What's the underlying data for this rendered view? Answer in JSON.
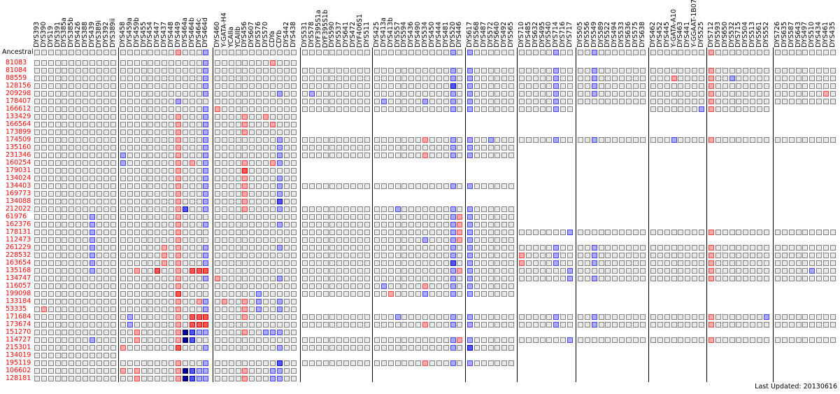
{
  "cell_codes": {
    ".": "same as modal",
    "r": "+1",
    "R": "+2 or more",
    "b": "-1",
    "B": "-2",
    "N": "-3 or more",
    "empty_string": "all same",
    "null": "not tested"
  },
  "colors": {
    "gray": "#e8e8e8",
    "r": "#ffaaaa",
    "R": "#ff5555",
    "b": "#aaaaff",
    "B": "#5555ff",
    "N": "#000099",
    "kit_label": "#ff0000"
  },
  "panels": [
    [
      "DYS393",
      "DYS390",
      "DYS19",
      "DYS391",
      "DYS385a",
      "DYS385b",
      "DYS426",
      "DYS388",
      "DYS439",
      "DYS389i",
      "DYS392",
      "DYS389ii"
    ],
    [
      "DYS458",
      "DYS459a",
      "DYS459b",
      "DYS455",
      "DYS454",
      "DYS447",
      "DYS437",
      "DYS448",
      "DYS449",
      "DYS464a",
      "DYS464b",
      "DYS464c",
      "DYS464d"
    ],
    [
      "DYS460",
      "Y-GATA-H4",
      "YCAIIa",
      "YCAIIb",
      "DYS456",
      "DYS607",
      "DYS576",
      "DYS570",
      "CDYa",
      "CDYb",
      "DYS442",
      "DYS438"
    ],
    [
      "DYS531",
      "DYS578",
      "DYF395S1a",
      "DYF395S1b",
      "DYS590",
      "DYS537",
      "DYS641",
      "DYS472",
      "DYF406S1",
      "DYS511"
    ],
    [
      "DYS425",
      "DYS413a",
      "DYS413b",
      "DYS557",
      "DYS594",
      "DYS436",
      "DYS490",
      "DYS534",
      "DYS450",
      "DYS444",
      "DYS481",
      "DYS520",
      "DYS446"
    ],
    [
      "DYS617",
      "DYS568",
      "DYS487",
      "DYS572",
      "DYS640",
      "DYS492",
      "DYS565"
    ],
    [
      "DYS710",
      "DYS485",
      "DYS632",
      "DYS495",
      "DYS540",
      "DYS714",
      "DYS716",
      "DYS717"
    ],
    [
      "DYS505",
      "DYS556",
      "DYS549",
      "DYS589",
      "DYS522",
      "DYS494",
      "DYS533",
      "DYS636",
      "DYS575",
      "DYS638"
    ],
    [
      "DYS462",
      "DYS452",
      "DYS445",
      "Y-GATA-A10",
      "DYS463",
      "DYS441",
      "Y-GGAAT-1B07",
      "DYS525"
    ],
    [
      "DYS712",
      "DYS593",
      "DYS650",
      "DYS532",
      "DYS715",
      "DYS504",
      "DYS513",
      "DYS561",
      "DYS552"
    ],
    [
      "DYS726",
      "DYS635",
      "DYS587",
      "DYS643",
      "DYS497",
      "DYS510",
      "DYS434",
      "DYS461",
      "DYS435"
    ]
  ],
  "ancestral": {
    "label": "Ancestral",
    "cells": [
      "",
      "........r...b",
      "",
      "",
      "...........b.",
      "b......",
      ".....b..",
      "..b.......",
      "",
      "r........",
      ""
    ]
  },
  "kits": [
    {
      "id": "81083",
      "cells": [
        "",
        "............b",
        "........r...",
        null,
        null,
        null,
        null,
        null,
        null,
        null,
        null
      ]
    },
    {
      "id": "81084",
      "cells": [
        "",
        "............b",
        "",
        "",
        "...........b.",
        "b......",
        ".....b..",
        "..b.......",
        "",
        "r........",
        ""
      ]
    },
    {
      "id": "88559",
      "cells": [
        "",
        "............b",
        "",
        "",
        "...........b.",
        "b......",
        ".....b..",
        "..b.......",
        "...r....",
        "r..b.....",
        ""
      ]
    },
    {
      "id": "128156",
      "cells": [
        "",
        "............b",
        "",
        "",
        "...........B.",
        "b......",
        ".....b..",
        "..b.......",
        "",
        "r........",
        ""
      ]
    },
    {
      "id": "209298",
      "cells": [
        "",
        "............b",
        ".........b..",
        ".b........",
        "...........b.",
        "b......",
        ".....b..",
        "..b.......",
        "",
        "r........",
        ".......r."
      ]
    },
    {
      "id": "178407",
      "cells": [
        "",
        "........b....",
        "",
        "",
        ".b.....b...b.",
        "b......",
        ".....b..",
        "",
        "",
        "r........",
        ""
      ]
    },
    {
      "id": "166612",
      "cells": [
        "",
        "............b",
        "r...........",
        "",
        "...........b.",
        "b......",
        ".....b..",
        null,
        ".......b",
        "r........",
        null
      ]
    },
    {
      "id": "133429",
      "cells": [
        "",
        "........r...b",
        "....r..r....",
        null,
        null,
        null,
        null,
        null,
        null,
        null,
        null
      ]
    },
    {
      "id": "166564",
      "cells": [
        "",
        "........r...b",
        "....r...r...",
        null,
        null,
        null,
        null,
        null,
        null,
        null,
        null
      ]
    },
    {
      "id": "173899",
      "cells": [
        "",
        "........r...b",
        "....r.......",
        null,
        null,
        null,
        null,
        null,
        null,
        null,
        null
      ]
    },
    {
      "id": "174509",
      "cells": [
        "",
        "........r...b",
        ".........b..",
        "",
        ".......r...b.",
        "b..b...",
        ".....b..",
        "..b.......",
        "...b....",
        "r........",
        ""
      ]
    },
    {
      "id": "135160",
      "cells": [
        "",
        "........r...b",
        ".........b..",
        "",
        "...........b.",
        "b......",
        null,
        null,
        null,
        null,
        null
      ]
    },
    {
      "id": "231346",
      "cells": [
        "",
        "b.......r...b",
        ".........b..",
        "",
        ".......r...b.",
        "b......",
        null,
        null,
        null,
        null,
        null
      ]
    },
    {
      "id": "160254",
      "cells": [
        "",
        "b.......r.r.b",
        "....r...rb..",
        null,
        null,
        null,
        null,
        null,
        null,
        null,
        null
      ]
    },
    {
      "id": "179031",
      "cells": [
        "",
        "........r...b",
        "....R.......",
        null,
        null,
        null,
        null,
        null,
        null,
        null,
        null
      ]
    },
    {
      "id": "134024",
      "cells": [
        "",
        "........r...b",
        "....r....b..",
        null,
        null,
        null,
        null,
        null,
        null,
        null,
        null
      ]
    },
    {
      "id": "134403",
      "cells": [
        "",
        "........r...b",
        "....r....b..",
        "",
        "...........b.",
        "b......",
        null,
        null,
        null,
        null,
        null
      ]
    },
    {
      "id": "169773",
      "cells": [
        "",
        "........r...b",
        "....r....b..",
        null,
        null,
        null,
        null,
        null,
        null,
        null,
        null
      ]
    },
    {
      "id": "134088",
      "cells": [
        "",
        "........r...b",
        "....r....B..",
        null,
        null,
        null,
        null,
        null,
        null,
        null,
        null
      ]
    },
    {
      "id": "212022",
      "cells": [
        "",
        "........rB..b",
        "....r....b..",
        "",
        "...b.......b.",
        "b......",
        null,
        null,
        null,
        null,
        null
      ]
    },
    {
      "id": "61976",
      "cells": [
        "........b...",
        "........r....",
        "",
        "",
        "...........br",
        "b......",
        null,
        null,
        null,
        null,
        null
      ]
    },
    {
      "id": "162376",
      "cells": [
        "........b...",
        "........r...b",
        ".........b..",
        "",
        "...........br",
        "b......",
        null,
        null,
        null,
        null,
        null
      ]
    },
    {
      "id": "178131",
      "cells": [
        "........b...",
        "........r....",
        "",
        "",
        "...........br",
        "b......",
        ".......b",
        "",
        "",
        "r........",
        ""
      ]
    },
    {
      "id": "112473",
      "cells": [
        "........b...",
        "........r....",
        "",
        "",
        ".......b...br",
        "b......",
        null,
        null,
        null,
        null,
        null
      ]
    },
    {
      "id": "261229",
      "cells": [
        "........b...",
        "......r.r...b",
        ".........b..",
        "",
        "...........b.",
        "b......",
        ".....b..",
        "..b.......",
        "",
        "r........",
        ""
      ]
    },
    {
      "id": "228532",
      "cells": [
        "........b...",
        "......r.r...b",
        "",
        "",
        "...........b.",
        "b......",
        "r....b..",
        "..b.......",
        "",
        "r........",
        ""
      ]
    },
    {
      "id": "163654",
      "cells": [
        "........b...",
        "......r.r...b",
        "",
        "",
        "...........B.",
        "b......",
        "r....b..",
        "..b.......",
        "",
        "r........",
        ""
      ]
    },
    {
      "id": "135168",
      "cells": [
        "........b...",
        "..r..R..r.RRR",
        "",
        "",
        "...........br",
        "b......",
        ".......b",
        "",
        "",
        "r........",
        ".....b..."
      ]
    },
    {
      "id": "134747",
      "cells": [
        "",
        "........r...b",
        "r........b..",
        "",
        "...........b.",
        "b......",
        ".......b",
        "..b.......",
        "",
        "r........",
        ""
      ]
    },
    {
      "id": "116057",
      "cells": [
        "",
        "........r....",
        "",
        "",
        ".b.....r...b.",
        "b......",
        null,
        null,
        null,
        null,
        null
      ]
    },
    {
      "id": "199098",
      "cells": [
        "",
        "........R....",
        "......b.....",
        "",
        "..r....b...b.",
        "b......",
        null,
        null,
        null,
        null,
        null
      ]
    },
    {
      "id": "133184",
      "cells": [
        "",
        "........r..rb",
        ".r..r.b..b..",
        null,
        null,
        null,
        null,
        null,
        null,
        null,
        null
      ]
    },
    {
      "id": "53335",
      "cells": [
        ".r..........",
        "........r...b",
        "....r.b..b..",
        null,
        null,
        null,
        null,
        null,
        null,
        null,
        null
      ]
    },
    {
      "id": "171684",
      "cells": [
        "",
        ".b......r.RRR",
        "....r.......",
        "",
        "...b.......b.",
        "b......",
        ".....b..",
        "..b.......",
        "",
        "r.......b",
        ""
      ]
    },
    {
      "id": "173674",
      "cells": [
        "",
        ".b......r.RRR",
        "",
        "",
        ".......r...b.",
        "b......",
        ".....b..",
        "..b.......",
        "",
        "r........",
        ""
      ]
    },
    {
      "id": "151270",
      "cells": [
        "",
        "..r.....rNBbb",
        "....r..bbb..",
        null,
        null,
        null,
        null,
        null,
        null,
        null,
        null
      ]
    },
    {
      "id": "114727",
      "cells": [
        "........b...",
        "..r.....rNB..",
        "",
        "",
        "...........br",
        "b......",
        ".......b",
        "",
        "",
        "r........",
        ""
      ]
    },
    {
      "id": "215301",
      "cells": [
        "",
        "r.......R...b",
        ".........b..",
        "",
        "...........b.",
        "B......",
        null,
        null,
        null,
        null,
        null
      ]
    },
    {
      "id": "134019",
      "cells": [
        "",
        null,
        null,
        null,
        null,
        null,
        null,
        null,
        null,
        null,
        null
      ]
    },
    {
      "id": "195119",
      "cells": [
        "",
        "........r...b",
        ".........B..",
        "",
        ".......r...b.",
        "b......",
        null,
        null,
        null,
        null,
        null
      ]
    },
    {
      "id": "106602",
      "cells": [
        "",
        "r.r.....rNBbb",
        "....r...bb..",
        null,
        null,
        null,
        null,
        null,
        null,
        null,
        null
      ]
    },
    {
      "id": "128181",
      "cells": [
        "",
        "..r.....rNBbb",
        "....r...bb..",
        null,
        null,
        null,
        null,
        null,
        null,
        null,
        null
      ]
    }
  ],
  "footer": {
    "last_updated": "Last Updated: 20130616"
  }
}
